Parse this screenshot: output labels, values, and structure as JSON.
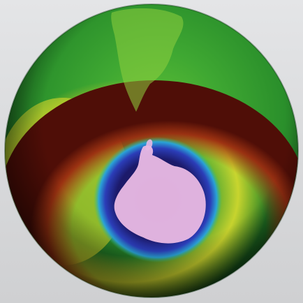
{
  "image": {
    "subject": "ozone-map-globe",
    "colors": {
      "background": "#d9dadc",
      "outer_green": "#2f9a2a",
      "yellow_band": "#e6e02a",
      "red_band": "#8a1f12",
      "blue_ring": "#2b3db8",
      "dark_core": "#16124a",
      "continent_pink": "#e6b6e0"
    }
  }
}
